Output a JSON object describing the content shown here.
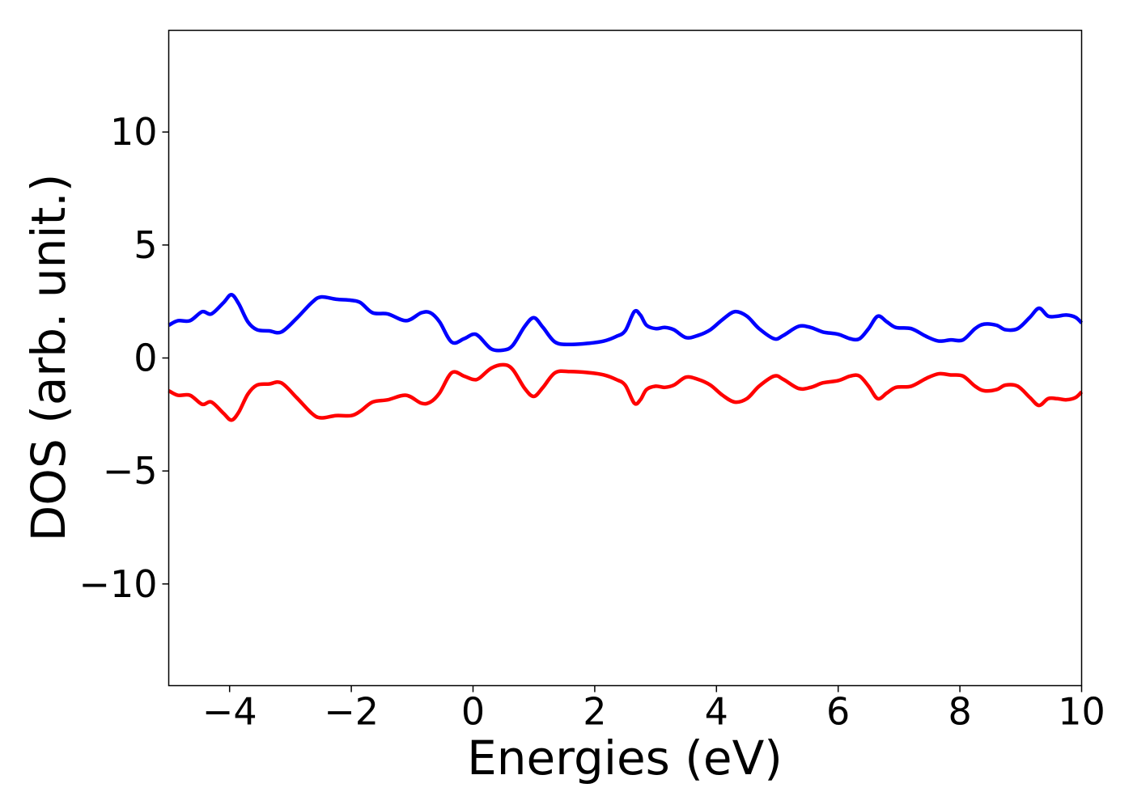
{
  "chart_data": {
    "type": "line",
    "title": "",
    "xlabel": "Energies (eV)",
    "ylabel": "DOS (arb. unit.)",
    "xlim": [
      -5,
      10
    ],
    "ylim": [
      -14.5,
      14.5
    ],
    "xticks": [
      -4,
      -2,
      0,
      2,
      4,
      6,
      8,
      10
    ],
    "xtick_labels": [
      "−4",
      "−2",
      "0",
      "2",
      "4",
      "6",
      "8",
      "10"
    ],
    "yticks": [
      10,
      5,
      0,
      -5,
      -10
    ],
    "ytick_labels": [
      "10",
      "5",
      "0",
      "−5",
      "−10"
    ],
    "grid": false,
    "legend": "none",
    "series": [
      {
        "color": "#0000ff",
        "points": [
          [
            -5.0,
            1.45
          ],
          [
            -4.85,
            1.65
          ],
          [
            -4.65,
            1.65
          ],
          [
            -4.45,
            2.05
          ],
          [
            -4.3,
            1.95
          ],
          [
            -4.1,
            2.45
          ],
          [
            -3.97,
            2.8
          ],
          [
            -3.85,
            2.4
          ],
          [
            -3.7,
            1.6
          ],
          [
            -3.55,
            1.25
          ],
          [
            -3.35,
            1.2
          ],
          [
            -3.15,
            1.15
          ],
          [
            -2.9,
            1.75
          ],
          [
            -2.65,
            2.45
          ],
          [
            -2.5,
            2.7
          ],
          [
            -2.25,
            2.6
          ],
          [
            -2.0,
            2.55
          ],
          [
            -1.85,
            2.45
          ],
          [
            -1.65,
            2.0
          ],
          [
            -1.4,
            1.95
          ],
          [
            -1.1,
            1.65
          ],
          [
            -0.85,
            2.0
          ],
          [
            -0.7,
            2.0
          ],
          [
            -0.55,
            1.6
          ],
          [
            -0.35,
            0.7
          ],
          [
            -0.15,
            0.85
          ],
          [
            0.0,
            1.05
          ],
          [
            0.1,
            0.95
          ],
          [
            0.3,
            0.4
          ],
          [
            0.5,
            0.35
          ],
          [
            0.65,
            0.55
          ],
          [
            0.85,
            1.4
          ],
          [
            1.0,
            1.78
          ],
          [
            1.15,
            1.35
          ],
          [
            1.35,
            0.7
          ],
          [
            1.6,
            0.6
          ],
          [
            1.9,
            0.65
          ],
          [
            2.15,
            0.75
          ],
          [
            2.35,
            0.95
          ],
          [
            2.5,
            1.2
          ],
          [
            2.65,
            2.05
          ],
          [
            2.75,
            1.9
          ],
          [
            2.85,
            1.45
          ],
          [
            3.0,
            1.3
          ],
          [
            3.15,
            1.35
          ],
          [
            3.3,
            1.25
          ],
          [
            3.5,
            0.9
          ],
          [
            3.7,
            1.0
          ],
          [
            3.9,
            1.25
          ],
          [
            4.1,
            1.7
          ],
          [
            4.3,
            2.05
          ],
          [
            4.5,
            1.85
          ],
          [
            4.7,
            1.3
          ],
          [
            4.95,
            0.85
          ],
          [
            5.1,
            1.0
          ],
          [
            5.35,
            1.4
          ],
          [
            5.55,
            1.35
          ],
          [
            5.75,
            1.15
          ],
          [
            6.0,
            1.05
          ],
          [
            6.2,
            0.85
          ],
          [
            6.35,
            0.85
          ],
          [
            6.5,
            1.3
          ],
          [
            6.65,
            1.85
          ],
          [
            6.8,
            1.6
          ],
          [
            6.95,
            1.35
          ],
          [
            7.2,
            1.3
          ],
          [
            7.45,
            0.95
          ],
          [
            7.65,
            0.75
          ],
          [
            7.85,
            0.8
          ],
          [
            8.05,
            0.8
          ],
          [
            8.25,
            1.3
          ],
          [
            8.4,
            1.5
          ],
          [
            8.6,
            1.45
          ],
          [
            8.75,
            1.25
          ],
          [
            8.95,
            1.3
          ],
          [
            9.15,
            1.8
          ],
          [
            9.3,
            2.2
          ],
          [
            9.45,
            1.85
          ],
          [
            9.6,
            1.85
          ],
          [
            9.75,
            1.9
          ],
          [
            9.9,
            1.8
          ],
          [
            10.0,
            1.55
          ]
        ]
      },
      {
        "color": "#ff0000",
        "points": [
          [
            -5.0,
            -1.45
          ],
          [
            -4.85,
            -1.65
          ],
          [
            -4.65,
            -1.65
          ],
          [
            -4.45,
            -2.05
          ],
          [
            -4.3,
            -1.95
          ],
          [
            -4.1,
            -2.45
          ],
          [
            -3.97,
            -2.75
          ],
          [
            -3.85,
            -2.4
          ],
          [
            -3.7,
            -1.6
          ],
          [
            -3.55,
            -1.2
          ],
          [
            -3.35,
            -1.15
          ],
          [
            -3.15,
            -1.1
          ],
          [
            -2.9,
            -1.75
          ],
          [
            -2.65,
            -2.45
          ],
          [
            -2.5,
            -2.65
          ],
          [
            -2.25,
            -2.55
          ],
          [
            -2.0,
            -2.55
          ],
          [
            -1.85,
            -2.35
          ],
          [
            -1.65,
            -1.95
          ],
          [
            -1.4,
            -1.85
          ],
          [
            -1.1,
            -1.65
          ],
          [
            -0.85,
            -2.0
          ],
          [
            -0.7,
            -1.95
          ],
          [
            -0.55,
            -1.55
          ],
          [
            -0.35,
            -0.65
          ],
          [
            -0.15,
            -0.8
          ],
          [
            0.0,
            -0.95
          ],
          [
            0.1,
            -0.9
          ],
          [
            0.3,
            -0.45
          ],
          [
            0.5,
            -0.3
          ],
          [
            0.65,
            -0.5
          ],
          [
            0.85,
            -1.35
          ],
          [
            1.0,
            -1.7
          ],
          [
            1.15,
            -1.3
          ],
          [
            1.35,
            -0.65
          ],
          [
            1.6,
            -0.6
          ],
          [
            1.9,
            -0.65
          ],
          [
            2.15,
            -0.75
          ],
          [
            2.35,
            -0.95
          ],
          [
            2.5,
            -1.2
          ],
          [
            2.65,
            -2.0
          ],
          [
            2.75,
            -1.85
          ],
          [
            2.85,
            -1.4
          ],
          [
            3.0,
            -1.25
          ],
          [
            3.15,
            -1.3
          ],
          [
            3.3,
            -1.2
          ],
          [
            3.5,
            -0.85
          ],
          [
            3.7,
            -0.95
          ],
          [
            3.9,
            -1.2
          ],
          [
            4.1,
            -1.65
          ],
          [
            4.3,
            -1.95
          ],
          [
            4.5,
            -1.8
          ],
          [
            4.7,
            -1.25
          ],
          [
            4.95,
            -0.8
          ],
          [
            5.1,
            -0.95
          ],
          [
            5.35,
            -1.35
          ],
          [
            5.55,
            -1.3
          ],
          [
            5.75,
            -1.1
          ],
          [
            6.0,
            -1.0
          ],
          [
            6.2,
            -0.8
          ],
          [
            6.35,
            -0.8
          ],
          [
            6.5,
            -1.25
          ],
          [
            6.65,
            -1.8
          ],
          [
            6.8,
            -1.55
          ],
          [
            6.95,
            -1.3
          ],
          [
            7.2,
            -1.25
          ],
          [
            7.45,
            -0.9
          ],
          [
            7.65,
            -0.7
          ],
          [
            7.85,
            -0.75
          ],
          [
            8.05,
            -0.8
          ],
          [
            8.25,
            -1.25
          ],
          [
            8.4,
            -1.45
          ],
          [
            8.6,
            -1.4
          ],
          [
            8.75,
            -1.2
          ],
          [
            8.95,
            -1.25
          ],
          [
            9.15,
            -1.75
          ],
          [
            9.3,
            -2.1
          ],
          [
            9.45,
            -1.8
          ],
          [
            9.6,
            -1.8
          ],
          [
            9.75,
            -1.85
          ],
          [
            9.9,
            -1.75
          ],
          [
            10.0,
            -1.5
          ]
        ]
      }
    ]
  }
}
